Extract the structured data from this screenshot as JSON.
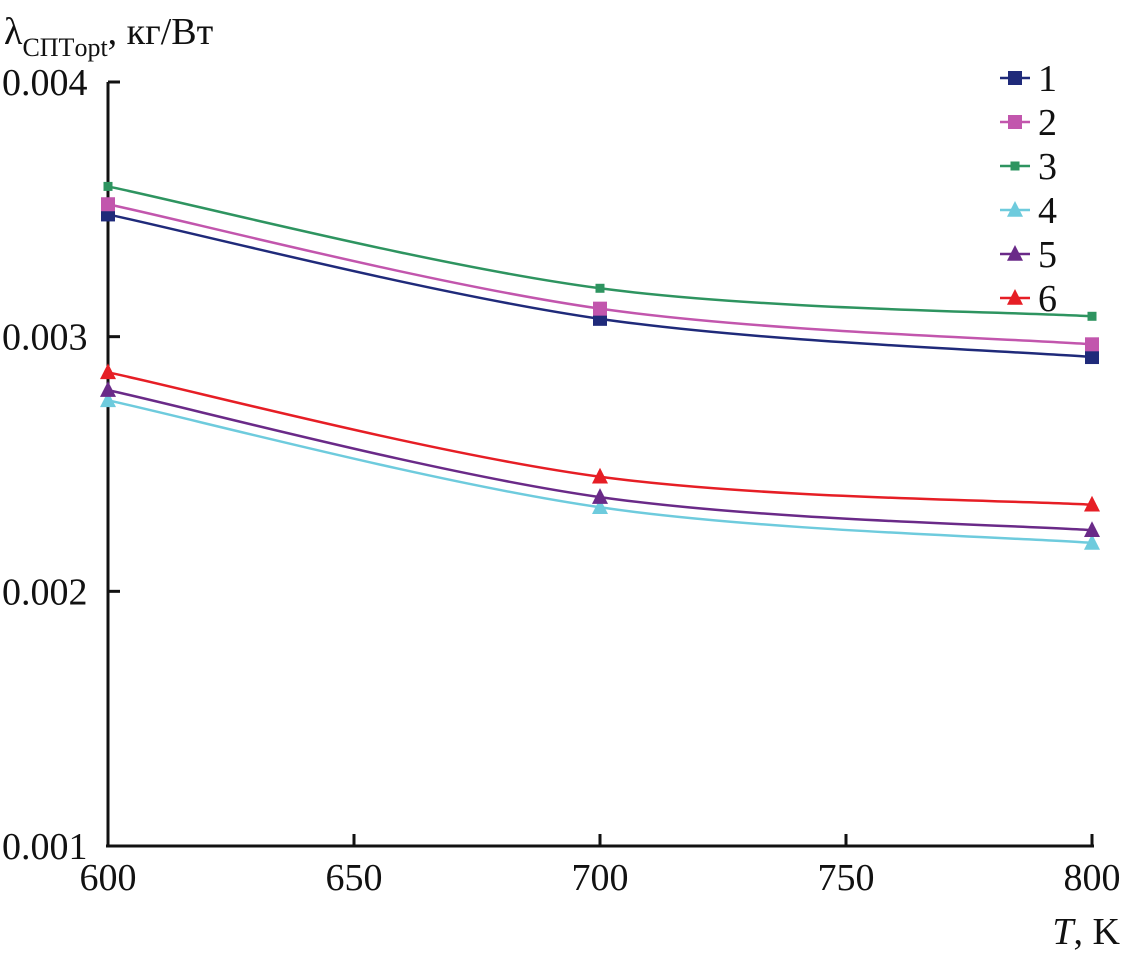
{
  "chart_data": {
    "type": "line",
    "ylabel_main": "λ",
    "ylabel_sub": "СПТopt",
    "ylabel_units": ", кг/Вт",
    "xlabel_var": "T",
    "xlabel_units": ", K",
    "x": [
      600,
      700,
      800
    ],
    "xlim": [
      600,
      800
    ],
    "ylim": [
      0.001,
      0.004
    ],
    "xticks": [
      600,
      650,
      700,
      750,
      800
    ],
    "xtick_labels": [
      "600",
      "650",
      "700",
      "750",
      "800"
    ],
    "yticks": [
      0.001,
      0.002,
      0.003,
      0.004
    ],
    "ytick_labels": [
      "0.001",
      "0.002",
      "0.003",
      "0.004"
    ],
    "grid": false,
    "legend_position": "top-right",
    "series": [
      {
        "name": "1",
        "marker": "square",
        "marker_size": "large",
        "color": "#1f2a7a",
        "values": [
          0.00348,
          0.00307,
          0.00292
        ]
      },
      {
        "name": "2",
        "marker": "square",
        "marker_size": "large",
        "color": "#c256ad",
        "values": [
          0.00352,
          0.00311,
          0.00297
        ]
      },
      {
        "name": "3",
        "marker": "square",
        "marker_size": "small",
        "color": "#2e9460",
        "values": [
          0.00359,
          0.00319,
          0.00308
        ]
      },
      {
        "name": "4",
        "marker": "triangle",
        "color": "#6ecbdd",
        "values": [
          0.00275,
          0.00233,
          0.00219
        ]
      },
      {
        "name": "5",
        "marker": "triangle",
        "color": "#6a2a88",
        "values": [
          0.00279,
          0.00237,
          0.00224
        ]
      },
      {
        "name": "6",
        "marker": "triangle",
        "color": "#e61e25",
        "values": [
          0.00286,
          0.00245,
          0.00234
        ]
      }
    ]
  }
}
